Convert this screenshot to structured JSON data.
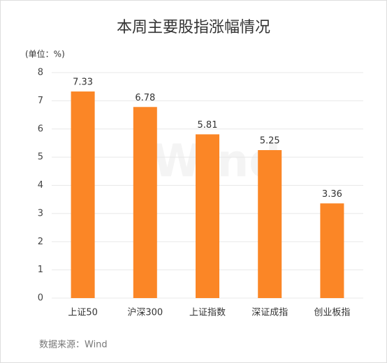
{
  "chart_data": {
    "type": "bar",
    "title": "本周主要股指涨幅情况",
    "unit_label": "(单位：%)",
    "source": "数据来源：Wind",
    "watermark": "Wind",
    "categories": [
      "上证50",
      "沪深300",
      "上证指数",
      "深证成指",
      "创业板指"
    ],
    "values": [
      7.33,
      6.78,
      5.81,
      5.25,
      3.36
    ],
    "color": "#fb8626",
    "ylim": [
      0,
      8
    ],
    "yticks": [
      0,
      1,
      2,
      3,
      4,
      5,
      6,
      7,
      8
    ],
    "grid": true
  }
}
